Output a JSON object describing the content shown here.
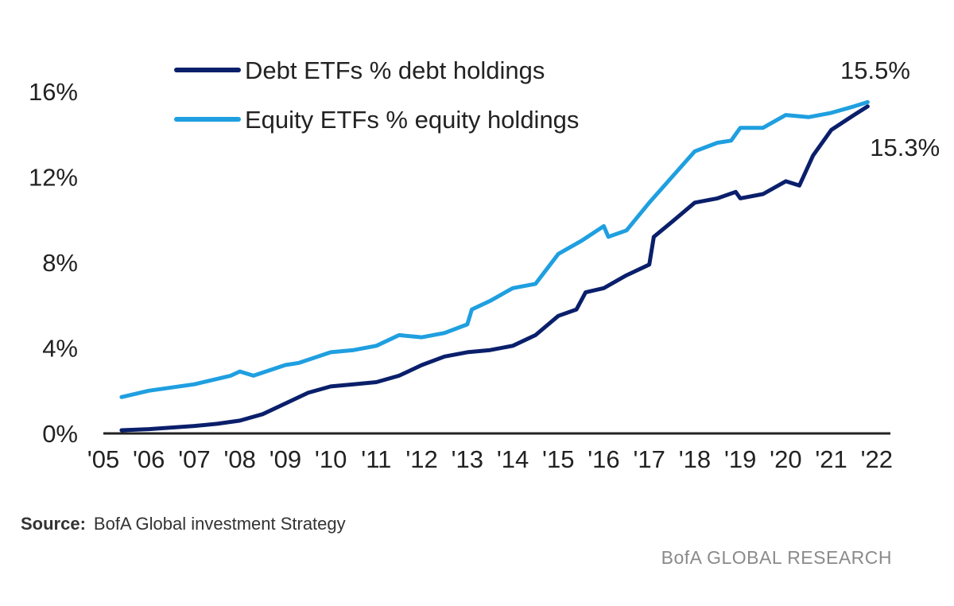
{
  "chart_data": {
    "type": "line",
    "x_unit": "year",
    "xlim": [
      2005,
      2022.3
    ],
    "ylim": [
      0,
      16
    ],
    "y_ticks": [
      {
        "value": 0,
        "label": "0%"
      },
      {
        "value": 4,
        "label": "4%"
      },
      {
        "value": 8,
        "label": "8%"
      },
      {
        "value": 12,
        "label": "12%"
      },
      {
        "value": 16,
        "label": "16%"
      }
    ],
    "x_ticks": [
      {
        "value": 2005,
        "label": "'05"
      },
      {
        "value": 2006,
        "label": "'06"
      },
      {
        "value": 2007,
        "label": "'07"
      },
      {
        "value": 2008,
        "label": "'08"
      },
      {
        "value": 2009,
        "label": "'09"
      },
      {
        "value": 2010,
        "label": "'10"
      },
      {
        "value": 2011,
        "label": "'11"
      },
      {
        "value": 2012,
        "label": "'12"
      },
      {
        "value": 2013,
        "label": "'13"
      },
      {
        "value": 2014,
        "label": "'14"
      },
      {
        "value": 2015,
        "label": "'15"
      },
      {
        "value": 2016,
        "label": "'16"
      },
      {
        "value": 2017,
        "label": "'17"
      },
      {
        "value": 2018,
        "label": "'18"
      },
      {
        "value": 2019,
        "label": "'19"
      },
      {
        "value": 2020,
        "label": "'20"
      },
      {
        "value": 2021,
        "label": "'21"
      },
      {
        "value": 2022,
        "label": "'22"
      }
    ],
    "legend_position": "top-left",
    "grid": false,
    "series": [
      {
        "name": "Debt ETFs % debt holdings",
        "color": "#0a1f6b",
        "x": [
          2005.4,
          2006,
          2007,
          2007.5,
          2008,
          2008.5,
          2009,
          2009.5,
          2010,
          2010.5,
          2011,
          2011.5,
          2012,
          2012.5,
          2013,
          2013.5,
          2014,
          2014.5,
          2015,
          2015.4,
          2015.6,
          2016,
          2016.5,
          2017,
          2017.1,
          2017.5,
          2018,
          2018.5,
          2018.9,
          2019,
          2019.5,
          2020,
          2020.3,
          2020.6,
          2021,
          2021.5,
          2021.8
        ],
        "y": [
          0.15,
          0.2,
          0.35,
          0.45,
          0.6,
          0.9,
          1.4,
          1.9,
          2.2,
          2.3,
          2.4,
          2.7,
          3.2,
          3.6,
          3.8,
          3.9,
          4.1,
          4.6,
          5.5,
          5.8,
          6.6,
          6.8,
          7.4,
          7.9,
          9.2,
          9.9,
          10.8,
          11.0,
          11.3,
          11.0,
          11.2,
          11.8,
          11.6,
          13.0,
          14.2,
          14.9,
          15.3
        ]
      },
      {
        "name": "Equity ETFs % equity holdings",
        "color": "#1f9fe0",
        "x": [
          2005.4,
          2006,
          2007,
          2007.8,
          2008,
          2008.3,
          2009,
          2009.3,
          2010,
          2010.5,
          2011,
          2011.5,
          2012,
          2012.5,
          2013,
          2013.1,
          2013.5,
          2014,
          2014.5,
          2015,
          2015.5,
          2016,
          2016.1,
          2016.5,
          2017,
          2017.5,
          2018,
          2018.5,
          2018.8,
          2019,
          2019.5,
          2020,
          2020.5,
          2021,
          2021.5,
          2021.8
        ],
        "y": [
          1.7,
          2.0,
          2.3,
          2.7,
          2.9,
          2.7,
          3.2,
          3.3,
          3.8,
          3.9,
          4.1,
          4.6,
          4.5,
          4.7,
          5.1,
          5.8,
          6.2,
          6.8,
          7.0,
          8.4,
          9.0,
          9.7,
          9.2,
          9.5,
          10.8,
          12.0,
          13.2,
          13.6,
          13.7,
          14.3,
          14.3,
          14.9,
          14.8,
          15.0,
          15.3,
          15.5
        ]
      }
    ],
    "annotations": [
      {
        "text": "15.5%",
        "x": 2021.2,
        "y": 17.0
      },
      {
        "text": "15.3%",
        "x": 2021.85,
        "y": 13.4
      }
    ]
  },
  "footer": {
    "source_label": "Source:",
    "source_text": "BofA Global investment Strategy",
    "branding": "BofA GLOBAL RESEARCH"
  }
}
